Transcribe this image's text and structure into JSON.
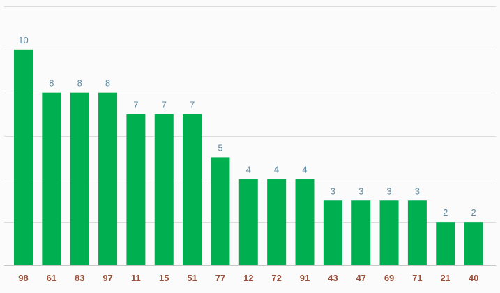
{
  "chart_data": {
    "type": "bar",
    "categories": [
      "98",
      "61",
      "83",
      "97",
      "11",
      "15",
      "51",
      "77",
      "12",
      "72",
      "91",
      "43",
      "47",
      "69",
      "71",
      "21",
      "40"
    ],
    "values": [
      10,
      8,
      8,
      8,
      7,
      7,
      7,
      5,
      4,
      4,
      4,
      3,
      3,
      3,
      3,
      2,
      2
    ],
    "title": "",
    "xlabel": "",
    "ylabel": "",
    "ylim": [
      0,
      12
    ],
    "grid": true,
    "legend": "none",
    "colors": {
      "bar": "#00b050",
      "value_label": "#5f8aa3",
      "category_label": "#9a4f3a",
      "grid": "#dcdcdc",
      "background": "#fbfbfb"
    }
  }
}
